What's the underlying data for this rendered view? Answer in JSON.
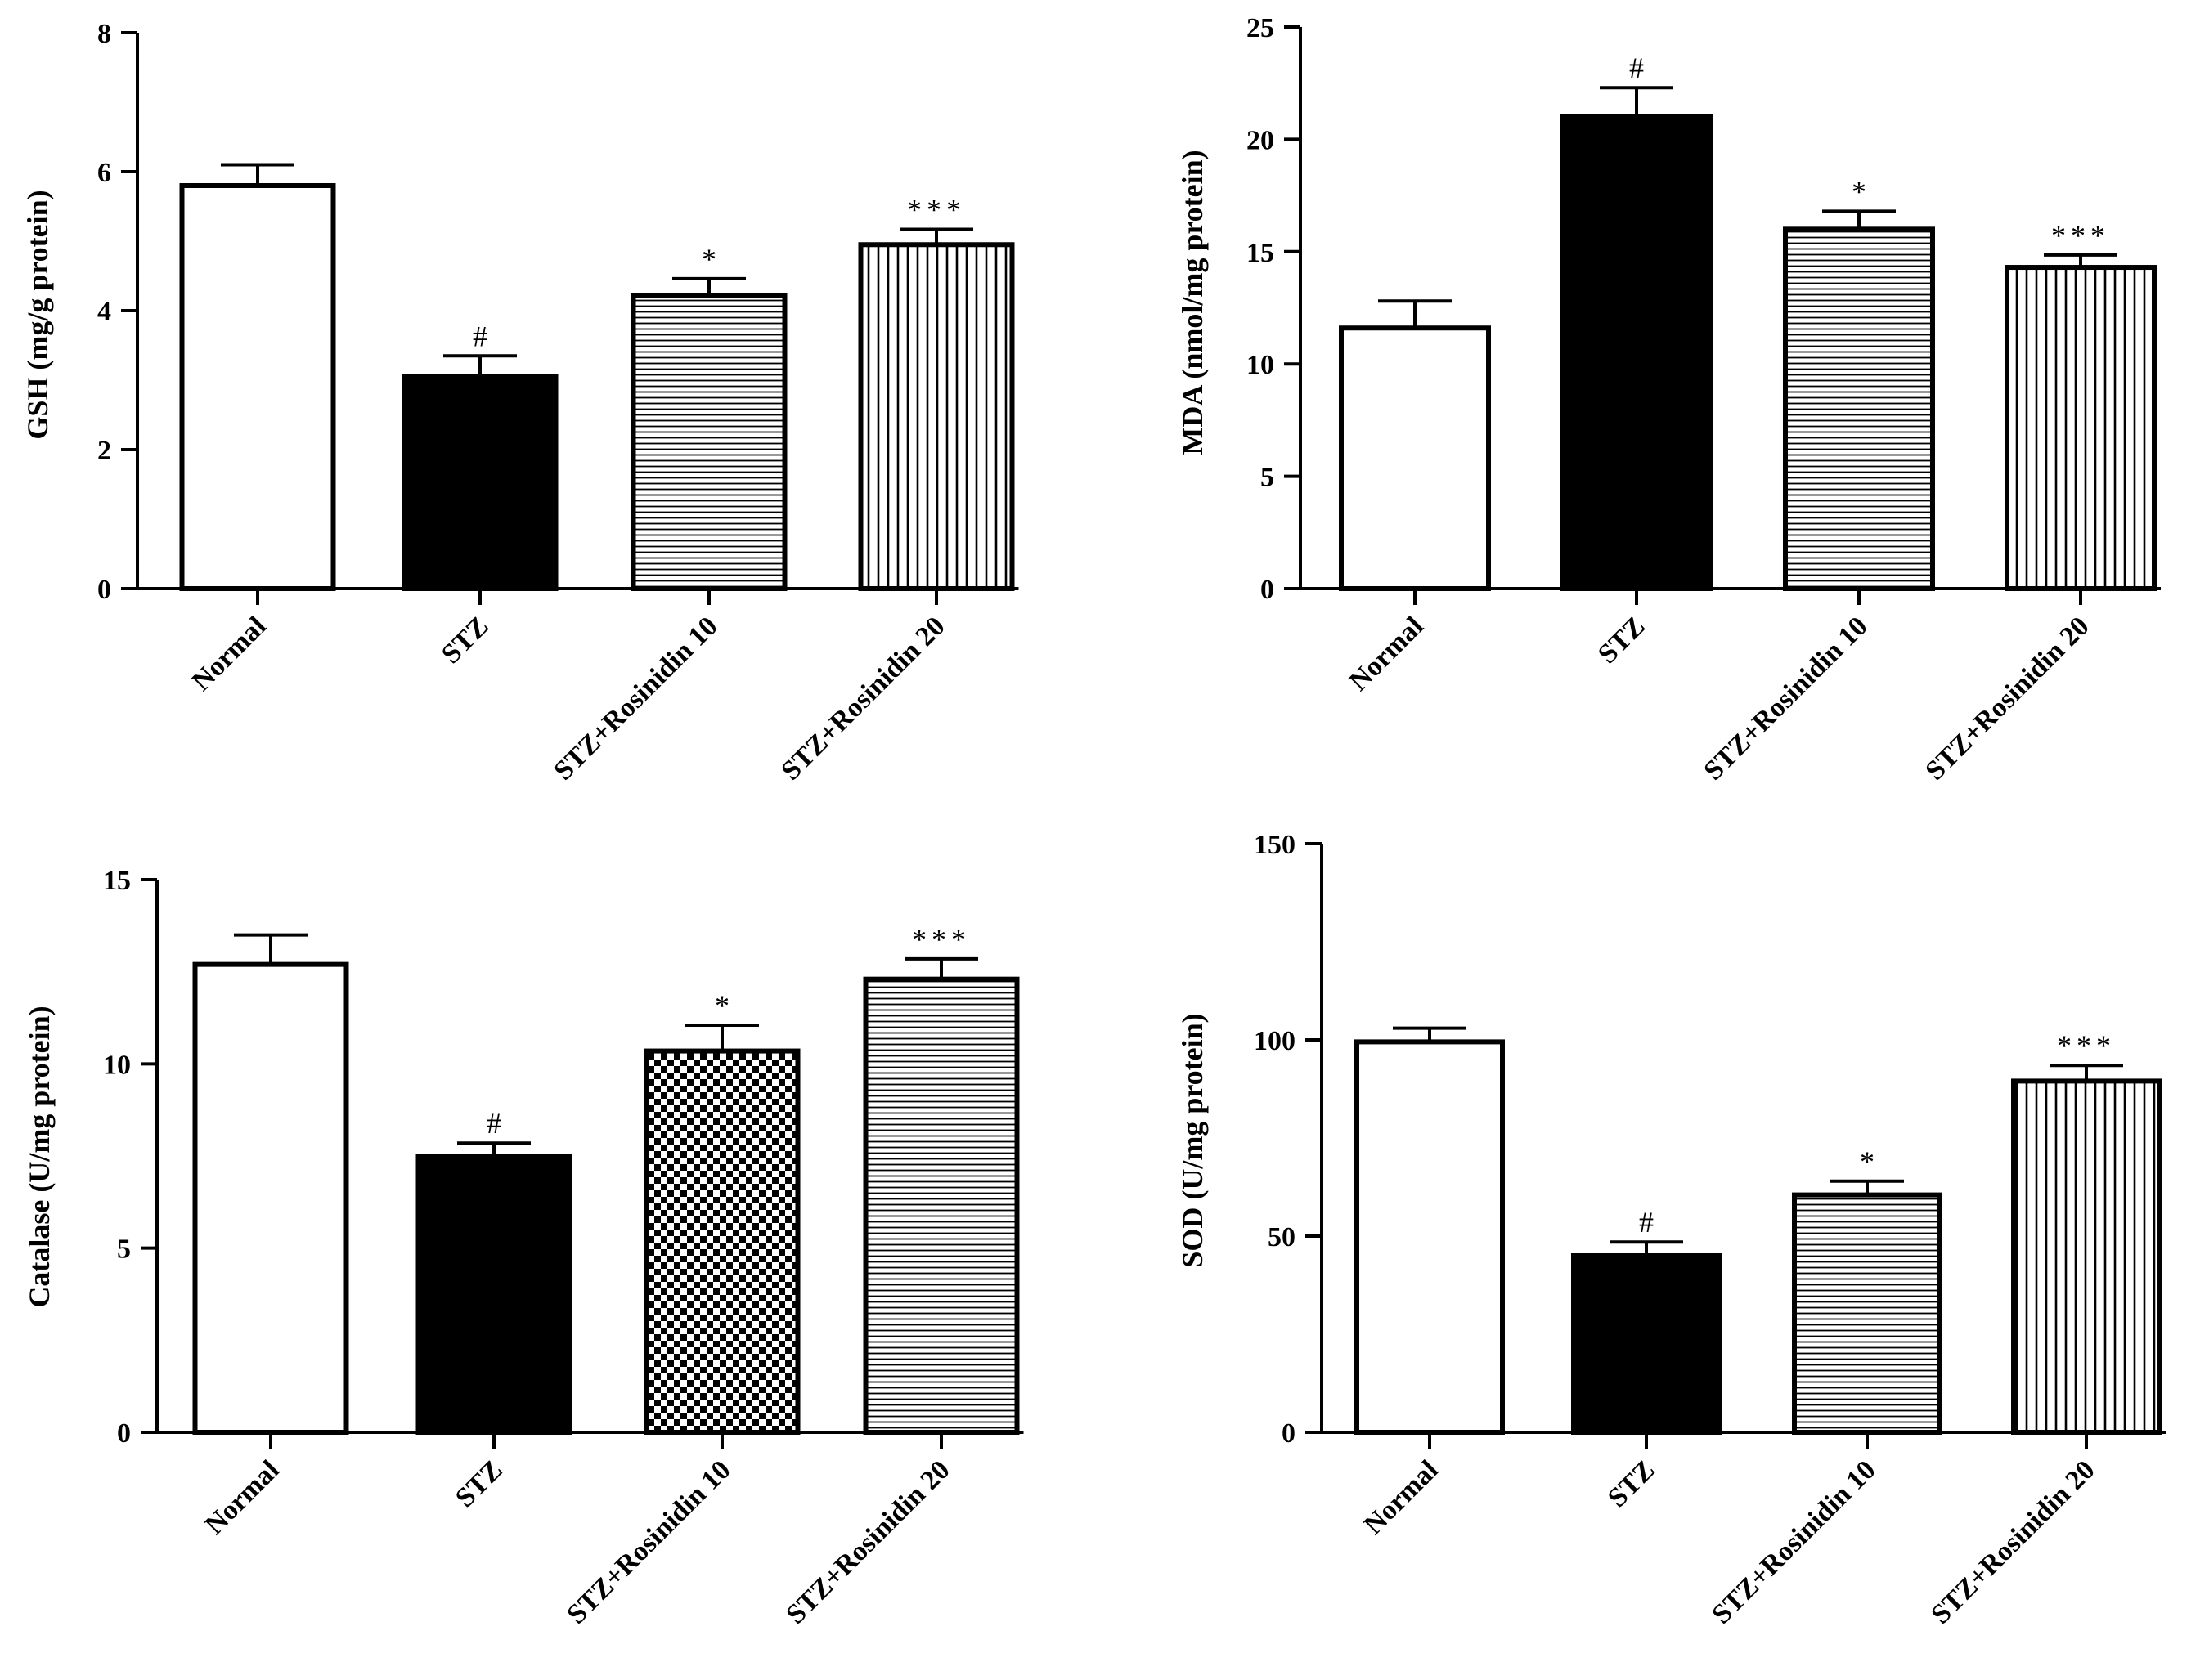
{
  "colors": {
    "ink": "#000000",
    "paper": "#ffffff"
  },
  "chart_data": [
    {
      "type": "bar",
      "ylabel": "GSH (mg/g protein)",
      "ylim": [
        0,
        8
      ],
      "yticks": [
        0,
        2,
        4,
        6,
        8
      ],
      "ytick_labels": [
        "0",
        "2",
        "4",
        "6",
        "8"
      ],
      "categories": [
        "Normal",
        "STZ",
        "STZ+Rosinidin 10",
        "STZ+Rosinidin 20"
      ],
      "values": [
        5.8,
        3.05,
        4.22,
        4.95
      ],
      "errors": [
        0.3,
        0.3,
        0.24,
        0.22
      ],
      "fills": [
        "white",
        "black",
        "hlines",
        "vlines"
      ],
      "annotations": [
        "",
        "#",
        "*",
        "***"
      ]
    },
    {
      "type": "bar",
      "ylabel": "MDA (nmol/mg protein)",
      "ylim": [
        0,
        25
      ],
      "yticks": [
        0,
        5,
        10,
        15,
        20,
        25
      ],
      "ytick_labels": [
        "0",
        "5",
        "10",
        "15",
        "20",
        "25"
      ],
      "categories": [
        "Normal",
        "STZ",
        "STZ+Rosinidin 10",
        "STZ+Rosinidin 20"
      ],
      "values": [
        11.6,
        21.0,
        16.0,
        14.3
      ],
      "errors": [
        1.2,
        1.3,
        0.8,
        0.55
      ],
      "fills": [
        "white",
        "black",
        "hlines",
        "vlines"
      ],
      "annotations": [
        "",
        "#",
        "*",
        "***"
      ]
    },
    {
      "type": "bar",
      "ylabel": "Catalase (U/mg protein)",
      "ylim": [
        0,
        15
      ],
      "yticks": [
        0,
        5,
        10,
        15
      ],
      "ytick_labels": [
        "0",
        "5",
        "10",
        "15"
      ],
      "categories": [
        "Normal",
        "STZ",
        "STZ+Rosinidin 10",
        "STZ+Rosinidin 20"
      ],
      "values": [
        12.7,
        7.5,
        10.35,
        12.3
      ],
      "errors": [
        0.8,
        0.35,
        0.7,
        0.55
      ],
      "fills": [
        "white",
        "black",
        "checker",
        "hlines"
      ],
      "annotations": [
        "",
        "#",
        "*",
        "***"
      ]
    },
    {
      "type": "bar",
      "ylabel": "SOD (U/mg protein)",
      "ylim": [
        0,
        150
      ],
      "yticks": [
        0,
        50,
        100,
        150
      ],
      "ytick_labels": [
        "0",
        "50",
        "100",
        "150"
      ],
      "categories": [
        "Normal",
        "STZ",
        "STZ+Rosinidin 10",
        "STZ+Rosinidin 20"
      ],
      "values": [
        99.5,
        45.0,
        60.5,
        89.5
      ],
      "errors": [
        3.5,
        3.5,
        3.5,
        4.0
      ],
      "fills": [
        "white",
        "black",
        "hlines",
        "vlines"
      ],
      "annotations": [
        "",
        "#",
        "*",
        "***"
      ]
    }
  ]
}
